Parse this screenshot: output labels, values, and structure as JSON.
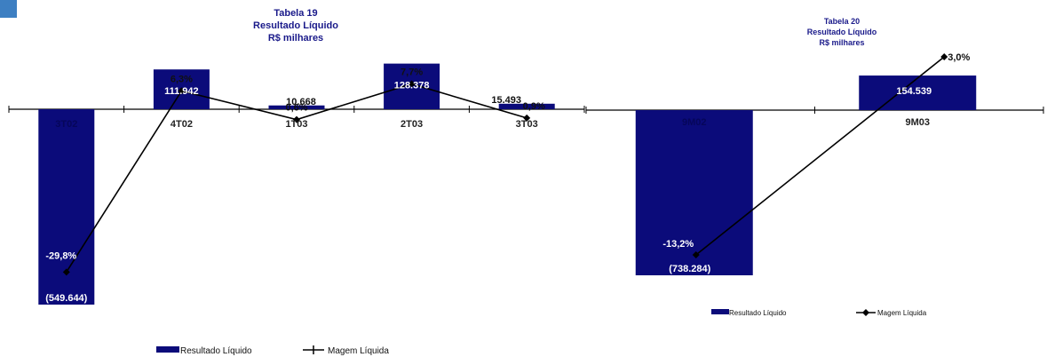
{
  "colors": {
    "bar": "#0b0b7a",
    "line": "#000000",
    "title": "#1a1a8a",
    "corner_tab": "#3d7fc2"
  },
  "chart_data": [
    {
      "type": "bar",
      "title": "Tabela 19",
      "subtitle": "Resultado Líquido",
      "unit_label": "R$ milhares",
      "categories": [
        "3T02",
        "4T02",
        "1T03",
        "2T03",
        "3T03"
      ],
      "series": [
        {
          "name": "Resultado Líquido",
          "type": "bar",
          "values": [
            -549644,
            111942,
            10668,
            128378,
            15493
          ],
          "labels": [
            "(549.644)",
            "111.942",
            "10.668",
            "128.378",
            "15.493"
          ]
        },
        {
          "name": "Magem Líquida",
          "type": "line",
          "values": [
            -29.8,
            6.3,
            0.6,
            7.7,
            0.9
          ],
          "labels": [
            "-29,8%",
            "6,3%",
            "0,6%",
            "7,7%",
            "0,9%"
          ]
        }
      ],
      "legend_position": "bottom",
      "grid": false
    },
    {
      "type": "bar",
      "title": "Tabela 20",
      "subtitle": "Resultado Líquido",
      "unit_label": "R$ milhares",
      "categories": [
        "9M02",
        "9M03"
      ],
      "series": [
        {
          "name": "Resultado Líquido",
          "type": "bar",
          "values": [
            -738284,
            154539
          ],
          "labels": [
            "(738.284)",
            "154.539"
          ]
        },
        {
          "name": "Magem Líquida",
          "type": "line",
          "values": [
            -13.2,
            3.0
          ],
          "labels": [
            "-13,2%",
            "3,0%"
          ]
        }
      ],
      "legend_position": "bottom",
      "grid": false
    }
  ]
}
